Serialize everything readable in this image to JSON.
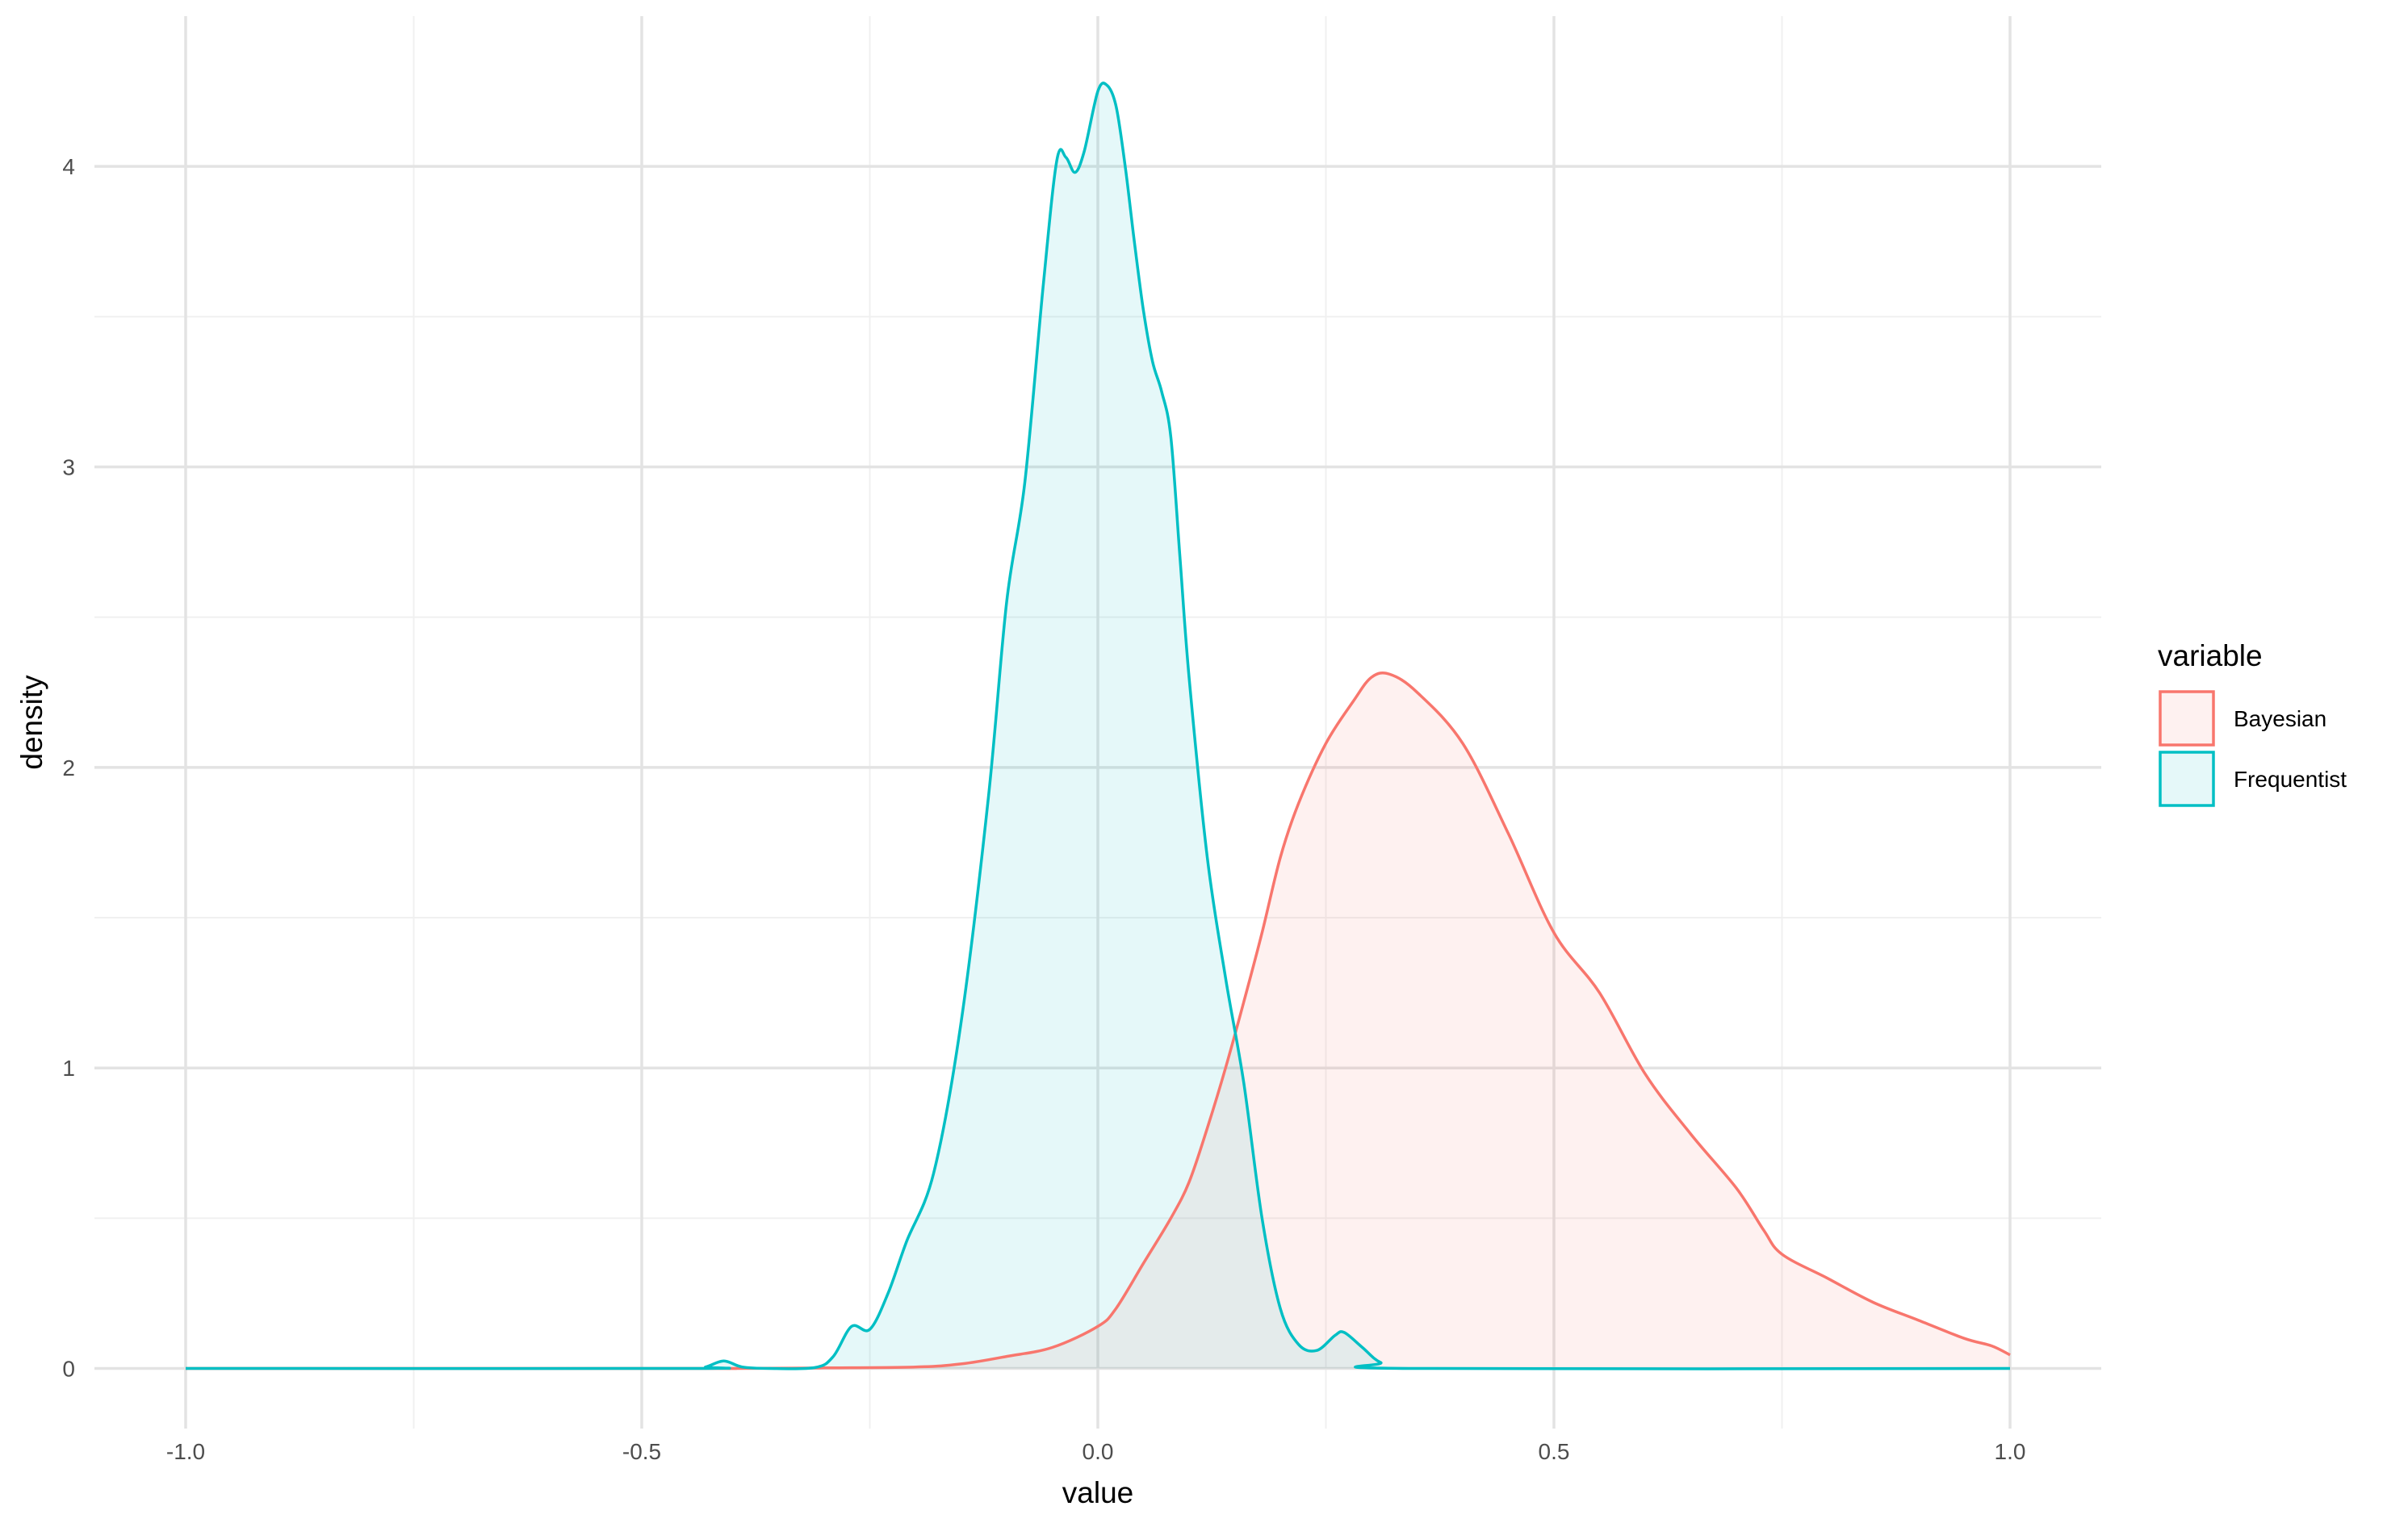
{
  "chart_data": {
    "type": "area",
    "title": "",
    "xlabel": "value",
    "ylabel": "density",
    "xlim": [
      -1.1,
      1.1
    ],
    "ylim": [
      -0.2,
      4.5
    ],
    "x_ticks": [
      -1.0,
      -0.5,
      0.0,
      0.5,
      1.0
    ],
    "x_tick_labels": [
      "-1.0",
      "-0.5",
      "0.0",
      "0.5",
      "1.0"
    ],
    "y_ticks": [
      0,
      1,
      2,
      3,
      4
    ],
    "y_tick_labels": [
      "0",
      "1",
      "2",
      "3",
      "4"
    ],
    "grid": true,
    "legend": {
      "title": "variable",
      "position": "right"
    },
    "series": [
      {
        "name": "Bayesian",
        "color": "#F8766D",
        "fill": "#FDEBEA",
        "points": [
          [
            -1.0,
            0
          ],
          [
            -0.45,
            0
          ],
          [
            -0.4,
            0
          ],
          [
            -0.3,
            0.002
          ],
          [
            -0.2,
            0.005
          ],
          [
            -0.15,
            0.015
          ],
          [
            -0.1,
            0.04
          ],
          [
            -0.05,
            0.07
          ],
          [
            0.0,
            0.14
          ],
          [
            0.02,
            0.2
          ],
          [
            0.05,
            0.35
          ],
          [
            0.08,
            0.5
          ],
          [
            0.1,
            0.62
          ],
          [
            0.12,
            0.8
          ],
          [
            0.14,
            1.0
          ],
          [
            0.16,
            1.22
          ],
          [
            0.18,
            1.45
          ],
          [
            0.2,
            1.7
          ],
          [
            0.22,
            1.88
          ],
          [
            0.25,
            2.08
          ],
          [
            0.28,
            2.22
          ],
          [
            0.3,
            2.3
          ],
          [
            0.32,
            2.31
          ],
          [
            0.35,
            2.25
          ],
          [
            0.4,
            2.08
          ],
          [
            0.45,
            1.78
          ],
          [
            0.5,
            1.45
          ],
          [
            0.55,
            1.25
          ],
          [
            0.6,
            0.98
          ],
          [
            0.65,
            0.78
          ],
          [
            0.7,
            0.6
          ],
          [
            0.73,
            0.46
          ],
          [
            0.75,
            0.38
          ],
          [
            0.8,
            0.3
          ],
          [
            0.85,
            0.22
          ],
          [
            0.9,
            0.16
          ],
          [
            0.95,
            0.1
          ],
          [
            0.98,
            0.075
          ],
          [
            1.0,
            0.045
          ]
        ]
      },
      {
        "name": "Frequentist",
        "color": "#00BFC4",
        "fill": "#E3F6F6",
        "points": [
          [
            -1.0,
            0
          ],
          [
            -0.45,
            0
          ],
          [
            -0.43,
            0.005
          ],
          [
            -0.41,
            0.025
          ],
          [
            -0.39,
            0.005
          ],
          [
            -0.36,
            0
          ],
          [
            -0.31,
            0.003
          ],
          [
            -0.29,
            0.04
          ],
          [
            -0.27,
            0.14
          ],
          [
            -0.25,
            0.13
          ],
          [
            -0.23,
            0.25
          ],
          [
            -0.21,
            0.42
          ],
          [
            -0.18,
            0.65
          ],
          [
            -0.15,
            1.15
          ],
          [
            -0.12,
            1.9
          ],
          [
            -0.1,
            2.55
          ],
          [
            -0.08,
            2.95
          ],
          [
            -0.06,
            3.6
          ],
          [
            -0.045,
            4.02
          ],
          [
            -0.035,
            4.03
          ],
          [
            -0.025,
            3.98
          ],
          [
            -0.015,
            4.05
          ],
          [
            0.0,
            4.25
          ],
          [
            0.01,
            4.27
          ],
          [
            0.02,
            4.2
          ],
          [
            0.03,
            4.0
          ],
          [
            0.04,
            3.75
          ],
          [
            0.05,
            3.52
          ],
          [
            0.06,
            3.35
          ],
          [
            0.07,
            3.25
          ],
          [
            0.08,
            3.1
          ],
          [
            0.09,
            2.7
          ],
          [
            0.1,
            2.3
          ],
          [
            0.12,
            1.7
          ],
          [
            0.14,
            1.3
          ],
          [
            0.16,
            0.95
          ],
          [
            0.18,
            0.5
          ],
          [
            0.2,
            0.2
          ],
          [
            0.22,
            0.08
          ],
          [
            0.24,
            0.06
          ],
          [
            0.26,
            0.11
          ],
          [
            0.27,
            0.12
          ],
          [
            0.29,
            0.07
          ],
          [
            0.31,
            0.02
          ],
          [
            0.34,
            0
          ],
          [
            1.0,
            0
          ]
        ]
      }
    ],
    "overlap_fill": "#E5E7E8"
  }
}
